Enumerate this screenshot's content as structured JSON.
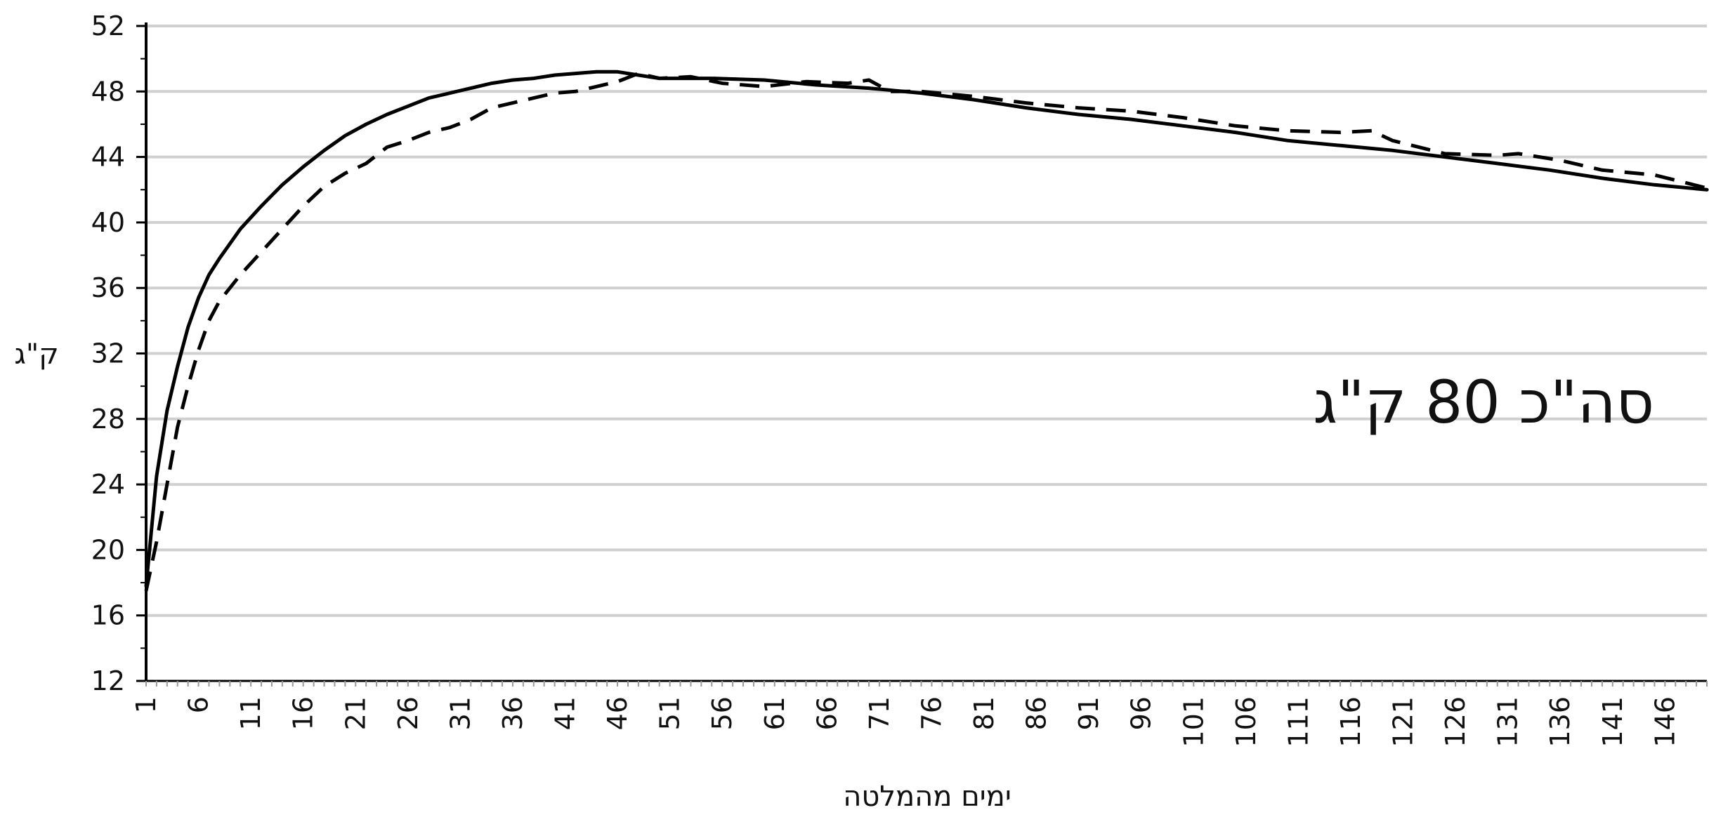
{
  "chart_data": {
    "type": "line",
    "title": "",
    "xlabel": "ימים מהמלטה",
    "ylabel": "ק\"ג",
    "annotation": "סה\"כ 80 ק\"ג",
    "xlim": [
      1,
      150
    ],
    "ylim": [
      12,
      52
    ],
    "yticks": [
      "12",
      "16",
      "20",
      "24",
      "28",
      "32",
      "36",
      "40",
      "44",
      "48",
      "52"
    ],
    "xticks": [
      "1",
      "6",
      "11",
      "16",
      "21",
      "26",
      "31",
      "36",
      "41",
      "46",
      "51",
      "56",
      "61",
      "66",
      "71",
      "76",
      "81",
      "86",
      "91",
      "96",
      "101",
      "106",
      "111",
      "116",
      "121",
      "126",
      "131",
      "136",
      "141",
      "146"
    ],
    "grid": true,
    "legend": "none",
    "series": [
      {
        "style": "solid",
        "color": "#000000",
        "x": [
          1,
          2,
          3,
          4,
          5,
          6,
          7,
          8,
          10,
          12,
          14,
          16,
          18,
          20,
          22,
          24,
          26,
          28,
          30,
          32,
          34,
          36,
          38,
          40,
          42,
          44,
          46,
          48,
          50,
          52,
          55,
          60,
          65,
          70,
          75,
          80,
          85,
          90,
          95,
          100,
          105,
          110,
          115,
          120,
          125,
          130,
          135,
          140,
          145,
          150
        ],
        "y": [
          17.8,
          24.5,
          28.5,
          31.2,
          33.6,
          35.4,
          36.8,
          37.8,
          39.6,
          41.0,
          42.3,
          43.4,
          44.4,
          45.3,
          46.0,
          46.6,
          47.1,
          47.6,
          47.9,
          48.2,
          48.5,
          48.7,
          48.8,
          49.0,
          49.1,
          49.2,
          49.2,
          49.0,
          48.8,
          48.8,
          48.8,
          48.7,
          48.4,
          48.2,
          47.9,
          47.5,
          47.0,
          46.6,
          46.3,
          45.9,
          45.5,
          45.0,
          44.7,
          44.4,
          44.0,
          43.6,
          43.2,
          42.7,
          42.3,
          42.0
        ]
      },
      {
        "style": "dashed",
        "color": "#000000",
        "x": [
          1,
          2,
          3,
          4,
          5,
          6,
          7,
          8,
          10,
          12,
          14,
          16,
          18,
          20,
          22,
          24,
          26,
          28,
          30,
          32,
          34,
          36,
          38,
          40,
          42,
          44,
          46,
          48,
          50,
          53,
          56,
          60,
          64,
          68,
          70,
          72,
          75,
          80,
          85,
          90,
          95,
          100,
          105,
          110,
          115,
          118,
          120,
          125,
          130,
          132,
          136,
          140,
          145,
          150
        ],
        "y": [
          17.5,
          20.5,
          24.0,
          27.5,
          30.0,
          32.2,
          34.0,
          35.2,
          36.8,
          38.2,
          39.6,
          41.0,
          42.2,
          43.0,
          43.6,
          44.6,
          45.0,
          45.5,
          45.8,
          46.3,
          47.0,
          47.3,
          47.6,
          47.9,
          48.0,
          48.3,
          48.6,
          49.1,
          48.8,
          48.9,
          48.5,
          48.3,
          48.6,
          48.5,
          48.7,
          48.0,
          48.0,
          47.7,
          47.3,
          47.0,
          46.8,
          46.4,
          45.9,
          45.6,
          45.5,
          45.6,
          45.0,
          44.2,
          44.1,
          44.2,
          43.8,
          43.2,
          42.9,
          42.1
        ]
      }
    ]
  }
}
